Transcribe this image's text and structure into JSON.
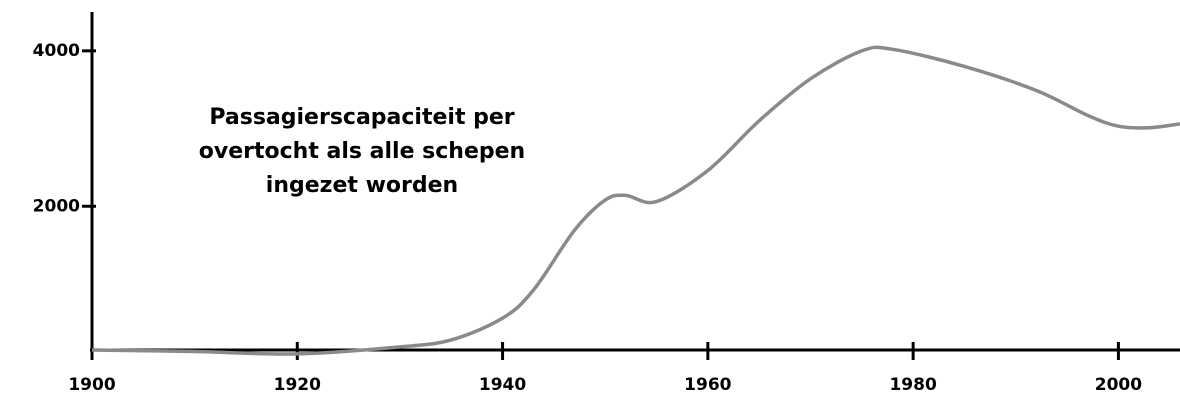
{
  "chart_data": {
    "type": "line",
    "annotation": [
      "Passagierscapaciteit per",
      "overtocht als alle schepen",
      "ingezet worden"
    ],
    "x": [
      1900,
      1910,
      1920,
      1930,
      1935,
      1940,
      1943,
      1947,
      1950,
      1952,
      1955,
      1960,
      1965,
      1970,
      1975,
      1978,
      1985,
      1992,
      1997,
      2000,
      2003,
      2006
    ],
    "series": [
      {
        "color": "#8a8a8a",
        "values": [
          150,
          130,
          100,
          190,
          280,
          560,
          920,
          1690,
          2080,
          2140,
          2060,
          2460,
          3100,
          3640,
          4000,
          4020,
          3800,
          3490,
          3170,
          3030,
          3010,
          3060
        ]
      }
    ],
    "xlim": [
      1900,
      2006
    ],
    "ylim": [
      150,
      4500
    ],
    "xticks": [
      1900,
      1920,
      1940,
      1960,
      1980,
      2000
    ],
    "yticks": [
      2000,
      4000
    ]
  }
}
